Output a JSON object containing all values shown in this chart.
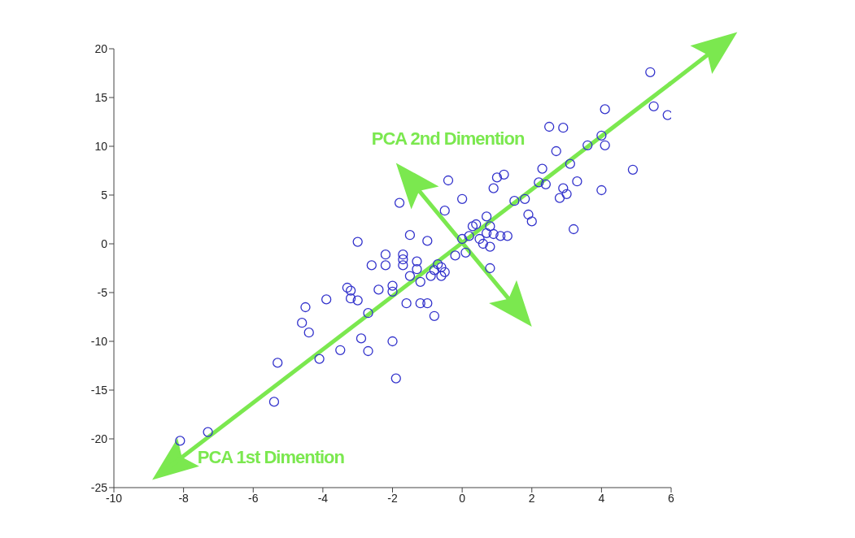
{
  "chart_data": {
    "type": "scatter",
    "marker": "circle",
    "grid": false,
    "xlim": [
      -10,
      6
    ],
    "xticks": [
      -10,
      -8,
      -6,
      -4,
      -2,
      0,
      2,
      4,
      6
    ],
    "ylim": [
      -25,
      20
    ],
    "yticks": [
      -25,
      -20,
      -15,
      -10,
      -5,
      0,
      5,
      10,
      15,
      20
    ],
    "annotations": [
      "PCA 2nd Dimention",
      "PCA 1st Dimention"
    ],
    "series": [
      {
        "type": "line",
        "color": "#7be84f",
        "marker": "none",
        "line_style": "solid",
        "x": [
          -8.6,
          6
        ],
        "values": [
          -23.4,
          16.5
        ]
      },
      {
        "color": "#3333cc",
        "x": [
          -8.1,
          -7.3,
          -5.4,
          -5.3,
          -4.1,
          -3.5,
          -4.6,
          -4.4,
          -4.5,
          -3.9,
          -3.3,
          -3.2,
          -3.2,
          -3.0,
          -3.0,
          -2.9,
          -2.7,
          -2.7,
          -2.6,
          -2.4,
          -2.2,
          -2.2,
          -2.0,
          -2.0,
          -2.0,
          -1.9,
          -1.8,
          -1.7,
          -1.7,
          -1.7,
          -1.6,
          -1.5,
          -1.5,
          -1.3,
          -1.3,
          -1.2,
          -1.2,
          -1.0,
          -1.0,
          -0.9,
          -0.8,
          -0.8,
          -0.7,
          -0.6,
          -0.6,
          -0.5,
          -0.5,
          -0.4,
          -0.2,
          0.0,
          0.0,
          0.1,
          0.2,
          0.3,
          0.4,
          0.5,
          0.6,
          0.7,
          0.7,
          0.8,
          0.8,
          0.8,
          0.9,
          0.9,
          1.0,
          1.1,
          1.2,
          1.3,
          1.5,
          1.8,
          1.9,
          2.0,
          2.2,
          2.3,
          2.4,
          2.5,
          2.7,
          2.8,
          2.9,
          2.9,
          3.0,
          3.1,
          3.2,
          3.3,
          3.6,
          4.0,
          4.0,
          4.1,
          4.1,
          4.9,
          5.4,
          5.5,
          5.9
        ],
        "values": [
          -20.2,
          -19.3,
          -16.2,
          -12.2,
          -11.8,
          -10.9,
          -8.1,
          -9.1,
          -6.5,
          -5.7,
          -4.5,
          -4.8,
          -5.6,
          -5.8,
          0.2,
          -9.7,
          -7.1,
          -11.0,
          -2.2,
          -4.7,
          -2.2,
          -1.1,
          -4.3,
          -4.9,
          -10.0,
          -13.8,
          4.2,
          -1.1,
          -1.6,
          -2.2,
          -6.1,
          -3.3,
          0.9,
          -1.8,
          -2.6,
          -3.9,
          -6.1,
          -6.1,
          0.3,
          -3.3,
          -2.7,
          -7.4,
          -2.1,
          -3.3,
          -2.4,
          -2.9,
          3.4,
          6.5,
          -1.2,
          0.5,
          4.6,
          -0.9,
          0.8,
          1.8,
          2.0,
          0.5,
          0.0,
          1.1,
          2.8,
          1.8,
          -2.5,
          -0.3,
          5.7,
          1.0,
          6.8,
          0.8,
          7.1,
          0.8,
          4.4,
          4.6,
          3.0,
          2.3,
          6.3,
          7.7,
          6.1,
          12.0,
          9.5,
          4.7,
          11.9,
          5.7,
          5.1,
          8.2,
          1.5,
          6.4,
          10.1,
          11.1,
          5.5,
          10.1,
          13.8,
          7.6,
          17.6,
          14.1,
          13.2
        ]
      }
    ]
  }
}
